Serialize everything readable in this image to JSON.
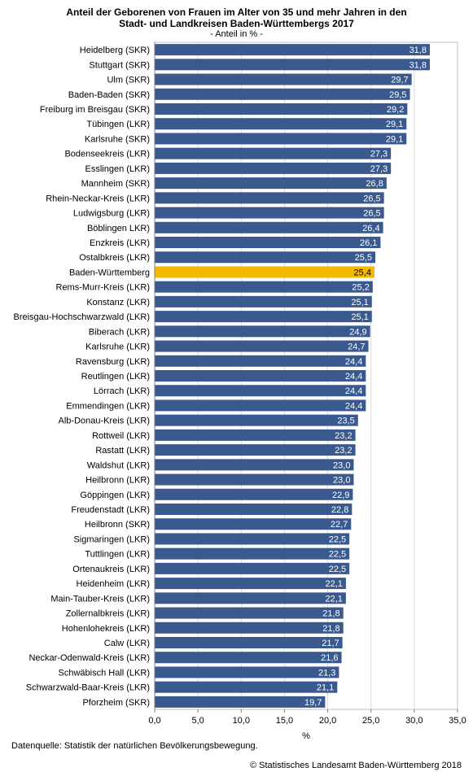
{
  "chart_data": {
    "type": "bar",
    "orientation": "horizontal",
    "title_line1": "Anteil der Geborenen von Frauen im Alter von 35 und mehr Jahren in den",
    "title_line2": "Stadt- und Landkreisen Baden-Württembergs 2017",
    "subtitle": "- Anteil in % -",
    "xlabel": "%",
    "xlim": [
      0,
      35
    ],
    "xticks": [
      "0,0",
      "5,0",
      "10,0",
      "15,0",
      "20,0",
      "25,0",
      "30,0",
      "35,0"
    ],
    "grid": true,
    "bar_color": "#3a5a8f",
    "highlight_color": "#f5b800",
    "highlight_category": "Baden-Württemberg",
    "categories": [
      "Heidelberg (SKR)",
      "Stuttgart (SKR)",
      "Ulm (SKR)",
      "Baden-Baden (SKR)",
      "Freiburg im Breisgau (SKR)",
      "Tübingen (LKR)",
      "Karlsruhe (SKR)",
      "Bodenseekreis (LKR)",
      "Esslingen (LKR)",
      "Mannheim (SKR)",
      "Rhein-Neckar-Kreis (LKR)",
      "Ludwigsburg (LKR)",
      "Böblingen LKR)",
      "Enzkreis (LKR)",
      "Ostalbkreis (LKR)",
      "Baden-Württemberg",
      "Rems-Murr-Kreis  (LKR)",
      "Konstanz (LKR)",
      "Breisgau-Hochschwarzwald (LKR)",
      "Biberach (LKR)",
      "Karlsruhe (LKR)",
      "Ravensburg (LKR)",
      "Reutlingen (LKR)",
      "Lörrach (LKR)",
      "Emmendingen (LKR)",
      "Alb-Donau-Kreis (LKR)",
      "Rottweil (LKR)",
      "Rastatt (LKR)",
      "Waldshut (LKR)",
      "Heilbronn (LKR)",
      "Göppingen (LKR)",
      "Freudenstadt (LKR)",
      "Heilbronn (SKR)",
      "Sigmaringen (LKR)",
      "Tuttlingen (LKR)",
      "Ortenaukreis (LKR)",
      "Heidenheim (LKR)",
      "Main-Tauber-Kreis (LKR)",
      "Zollernalbkreis (LKR)",
      "Hohenlohekreis (LKR)",
      "Calw (LKR)",
      "Neckar-Odenwald-Kreis (LKR)",
      "Schwäbisch Hall (LKR)",
      "Schwarzwald-Baar-Kreis (LKR)",
      "Pforzheim (SKR)"
    ],
    "values": [
      31.8,
      31.8,
      29.7,
      29.5,
      29.2,
      29.1,
      29.1,
      27.3,
      27.3,
      26.8,
      26.5,
      26.5,
      26.4,
      26.1,
      25.5,
      25.4,
      25.2,
      25.1,
      25.1,
      24.9,
      24.7,
      24.4,
      24.4,
      24.4,
      24.4,
      23.5,
      23.2,
      23.2,
      23.0,
      23.0,
      22.9,
      22.8,
      22.7,
      22.5,
      22.5,
      22.5,
      22.1,
      22.1,
      21.8,
      21.8,
      21.7,
      21.6,
      21.3,
      21.1,
      19.7
    ],
    "value_labels": [
      "31,8",
      "31,8",
      "29,7",
      "29,5",
      "29,2",
      "29,1",
      "29,1",
      "27,3",
      "27,3",
      "26,8",
      "26,5",
      "26,5",
      "26,4",
      "26,1",
      "25,5",
      "25,4",
      "25,2",
      "25,1",
      "25,1",
      "24,9",
      "24,7",
      "24,4",
      "24,4",
      "24,4",
      "24,4",
      "23,5",
      "23,2",
      "23,2",
      "23,0",
      "23,0",
      "22,9",
      "22,8",
      "22,7",
      "22,5",
      "22,5",
      "22,5",
      "22,1",
      "22,1",
      "21,8",
      "21,8",
      "21,7",
      "21,6",
      "21,3",
      "21,1",
      "19,7"
    ]
  },
  "footer": {
    "source": "Datenquelle: Statistik der natürlichen Bevölkerungsbewegung.",
    "copyright": "© Statistisches Landesamt Baden-Württemberg 2018"
  }
}
